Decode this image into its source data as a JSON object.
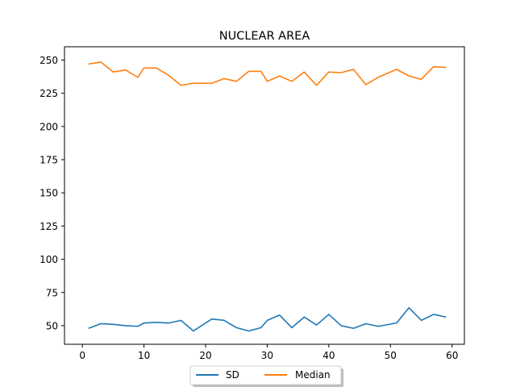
{
  "chart_data": {
    "type": "line",
    "title": "NUCLEAR AREA",
    "xlabel": "",
    "ylabel": "",
    "xlim": [
      -2.9,
      62
    ],
    "ylim": [
      36,
      260
    ],
    "x_ticks": [
      0,
      10,
      20,
      30,
      40,
      50,
      60
    ],
    "y_ticks": [
      50,
      75,
      100,
      125,
      150,
      175,
      200,
      225,
      250
    ],
    "grid": false,
    "legend_position": "bottom-center",
    "x": [
      1,
      3,
      5,
      7,
      9,
      10,
      12,
      14,
      16,
      18,
      21,
      23,
      25,
      27,
      29,
      30,
      32,
      34,
      36,
      38,
      40,
      42,
      44,
      46,
      48,
      51,
      53,
      55,
      57,
      59
    ],
    "series": [
      {
        "name": "SD",
        "color": "#1f77b4",
        "values": [
          48,
          51.5,
          51,
          50,
          49.5,
          52,
          52.5,
          52,
          54,
          46,
          55,
          54,
          48.5,
          46,
          48.5,
          54,
          58,
          48.5,
          56.5,
          50.5,
          58.5,
          50,
          48,
          51.5,
          49.5,
          52,
          63.5,
          54,
          58.5,
          56.5
        ]
      },
      {
        "name": "Median",
        "color": "#ff7f0e",
        "values": [
          247,
          248.5,
          241,
          242.5,
          237,
          244,
          244,
          238.5,
          231,
          232.5,
          232.5,
          236,
          234,
          241.5,
          241.5,
          234,
          238,
          234,
          241,
          231,
          241,
          240.5,
          243,
          231.5,
          237,
          243,
          238,
          235.5,
          245,
          244.5
        ]
      }
    ]
  }
}
